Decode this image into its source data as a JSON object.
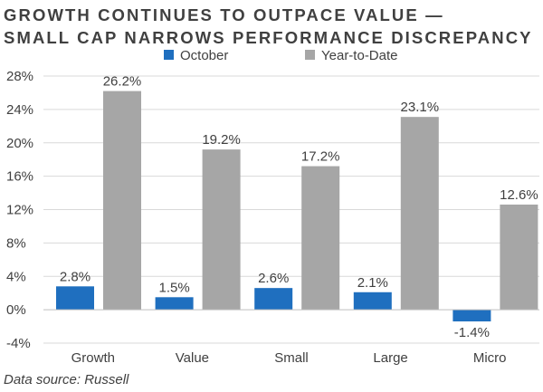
{
  "title_line1": "GROWTH CONTINUES TO OUTPACE VALUE —",
  "title_line2": "SMALL CAP NARROWS PERFORMANCE DISCREPANCY",
  "source": "Data source: Russell",
  "colors": {
    "october": "#1f6fbf",
    "ytd": "#a6a6a6",
    "grid": "#d9d9d9",
    "axis": "#bfbfbf",
    "text": "#404040"
  },
  "chart_data": {
    "type": "bar",
    "categories": [
      "Growth",
      "Value",
      "Small",
      "Large",
      "Micro"
    ],
    "series": [
      {
        "name": "October",
        "values": [
          2.8,
          1.5,
          2.6,
          2.1,
          -1.4
        ],
        "labels": [
          "2.8%",
          "1.5%",
          "2.6%",
          "2.1%",
          "-1.4%"
        ]
      },
      {
        "name": "Year-to-Date",
        "values": [
          26.2,
          19.2,
          17.2,
          23.1,
          12.6
        ],
        "labels": [
          "26.2%",
          "19.2%",
          "17.2%",
          "23.1%",
          "12.6%"
        ]
      }
    ],
    "yticks": [
      "-4%",
      "0%",
      "4%",
      "8%",
      "12%",
      "16%",
      "20%",
      "24%",
      "28%"
    ],
    "ytick_values": [
      -4,
      0,
      4,
      8,
      12,
      16,
      20,
      24,
      28
    ],
    "ylim": [
      -4,
      28
    ],
    "grid": "horizontal",
    "legend": "top"
  }
}
